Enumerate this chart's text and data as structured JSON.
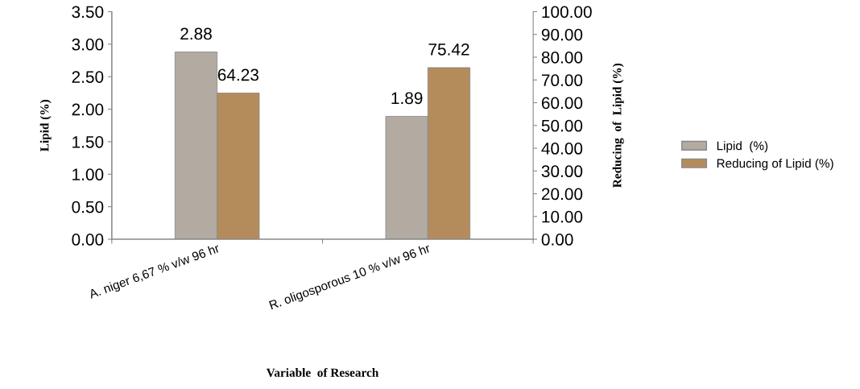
{
  "chart_data": {
    "type": "bar",
    "xlabel": "Variable  of Research",
    "ylabel": "Lipid (%)",
    "y2label": "Reducing  of  Lipid (%)",
    "categories": [
      "A. niger 6,67 % v/w 96 hr",
      "R. oligosporous 10 % v/w 96 hr"
    ],
    "series": [
      {
        "name": "Lipid  (%)",
        "color": "#b3aaa2",
        "values": [
          2.88,
          1.89
        ]
      },
      {
        "name": "Reducing of Lipid (%)",
        "color": "#b48c5c",
        "values": [
          64.23,
          75.42
        ],
        "axis": "y2"
      }
    ],
    "ylim": [
      0,
      3.5
    ],
    "yticks": [
      {
        "value": 0,
        "label": "0.00"
      },
      {
        "value": 0.5,
        "label": "0.50"
      },
      {
        "value": 1,
        "label": "1.00"
      },
      {
        "value": 1.5,
        "label": "1.50"
      },
      {
        "value": 2,
        "label": "2.00"
      },
      {
        "value": 2.5,
        "label": "2.50"
      },
      {
        "value": 3,
        "label": "3.00"
      },
      {
        "value": 3.5,
        "label": "3.50"
      }
    ],
    "y2lim": [
      0,
      100
    ],
    "y2ticks": [
      {
        "value": 0,
        "label": "0.00"
      },
      {
        "value": 10,
        "label": "10.00"
      },
      {
        "value": 20,
        "label": "20.00"
      },
      {
        "value": 30,
        "label": "30.00"
      },
      {
        "value": 40,
        "label": "40.00"
      },
      {
        "value": 50,
        "label": "50.00"
      },
      {
        "value": 60,
        "label": "60.00"
      },
      {
        "value": 70,
        "label": "70.00"
      },
      {
        "value": 80,
        "label": "80.00"
      },
      {
        "value": 90,
        "label": "90.00"
      },
      {
        "value": 100,
        "label": "100.00"
      }
    ],
    "data_labels": true,
    "grid": false,
    "legend": "right"
  }
}
